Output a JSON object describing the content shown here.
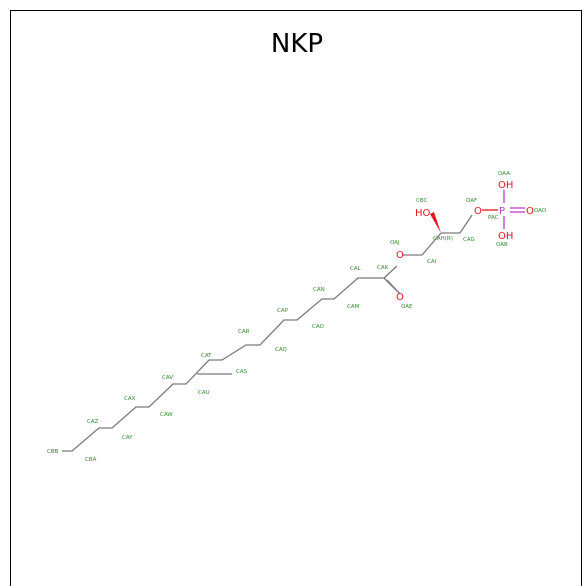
{
  "title": "NKP",
  "atoms": {
    "o_hydroxyl": "HO",
    "o_ester_chain": "O",
    "o_carbonyl": "O",
    "o_phosphate": "O",
    "p": "P",
    "oh_top": "OH",
    "oh_bottom": "OH",
    "o_double": "O"
  },
  "labels": {
    "CBC": "CBC",
    "OAF": "OAF",
    "OAA": "OAA",
    "OAD": "OAD",
    "PAC": "PAC",
    "OAB": "OAB",
    "CAH": "CAH(R)",
    "CAG": "CAG",
    "OAJ": "OAJ",
    "CAI": "CAI",
    "CAK": "CAK",
    "CAL": "CAL",
    "OAE": "OAE",
    "CAN": "CAN",
    "CAM": "CAM",
    "CAO": "CAO",
    "CAP": "CAP",
    "CAR": "CAR",
    "CAQ": "CAQ",
    "CAT": "CAT",
    "CAS": "CAS",
    "CAU": "CAU",
    "CAV": "CAV",
    "CAX": "CAX",
    "CAW": "CAW",
    "CAZ": "CAZ",
    "CAY": "CAY",
    "CBB": "CBB",
    "CBA": "CBA"
  },
  "colors": {
    "carbon_bond": "#7a7a7a",
    "oxygen": "#e3161b",
    "phosphorus": "#c13dc8",
    "label": "#2e8b2e"
  }
}
